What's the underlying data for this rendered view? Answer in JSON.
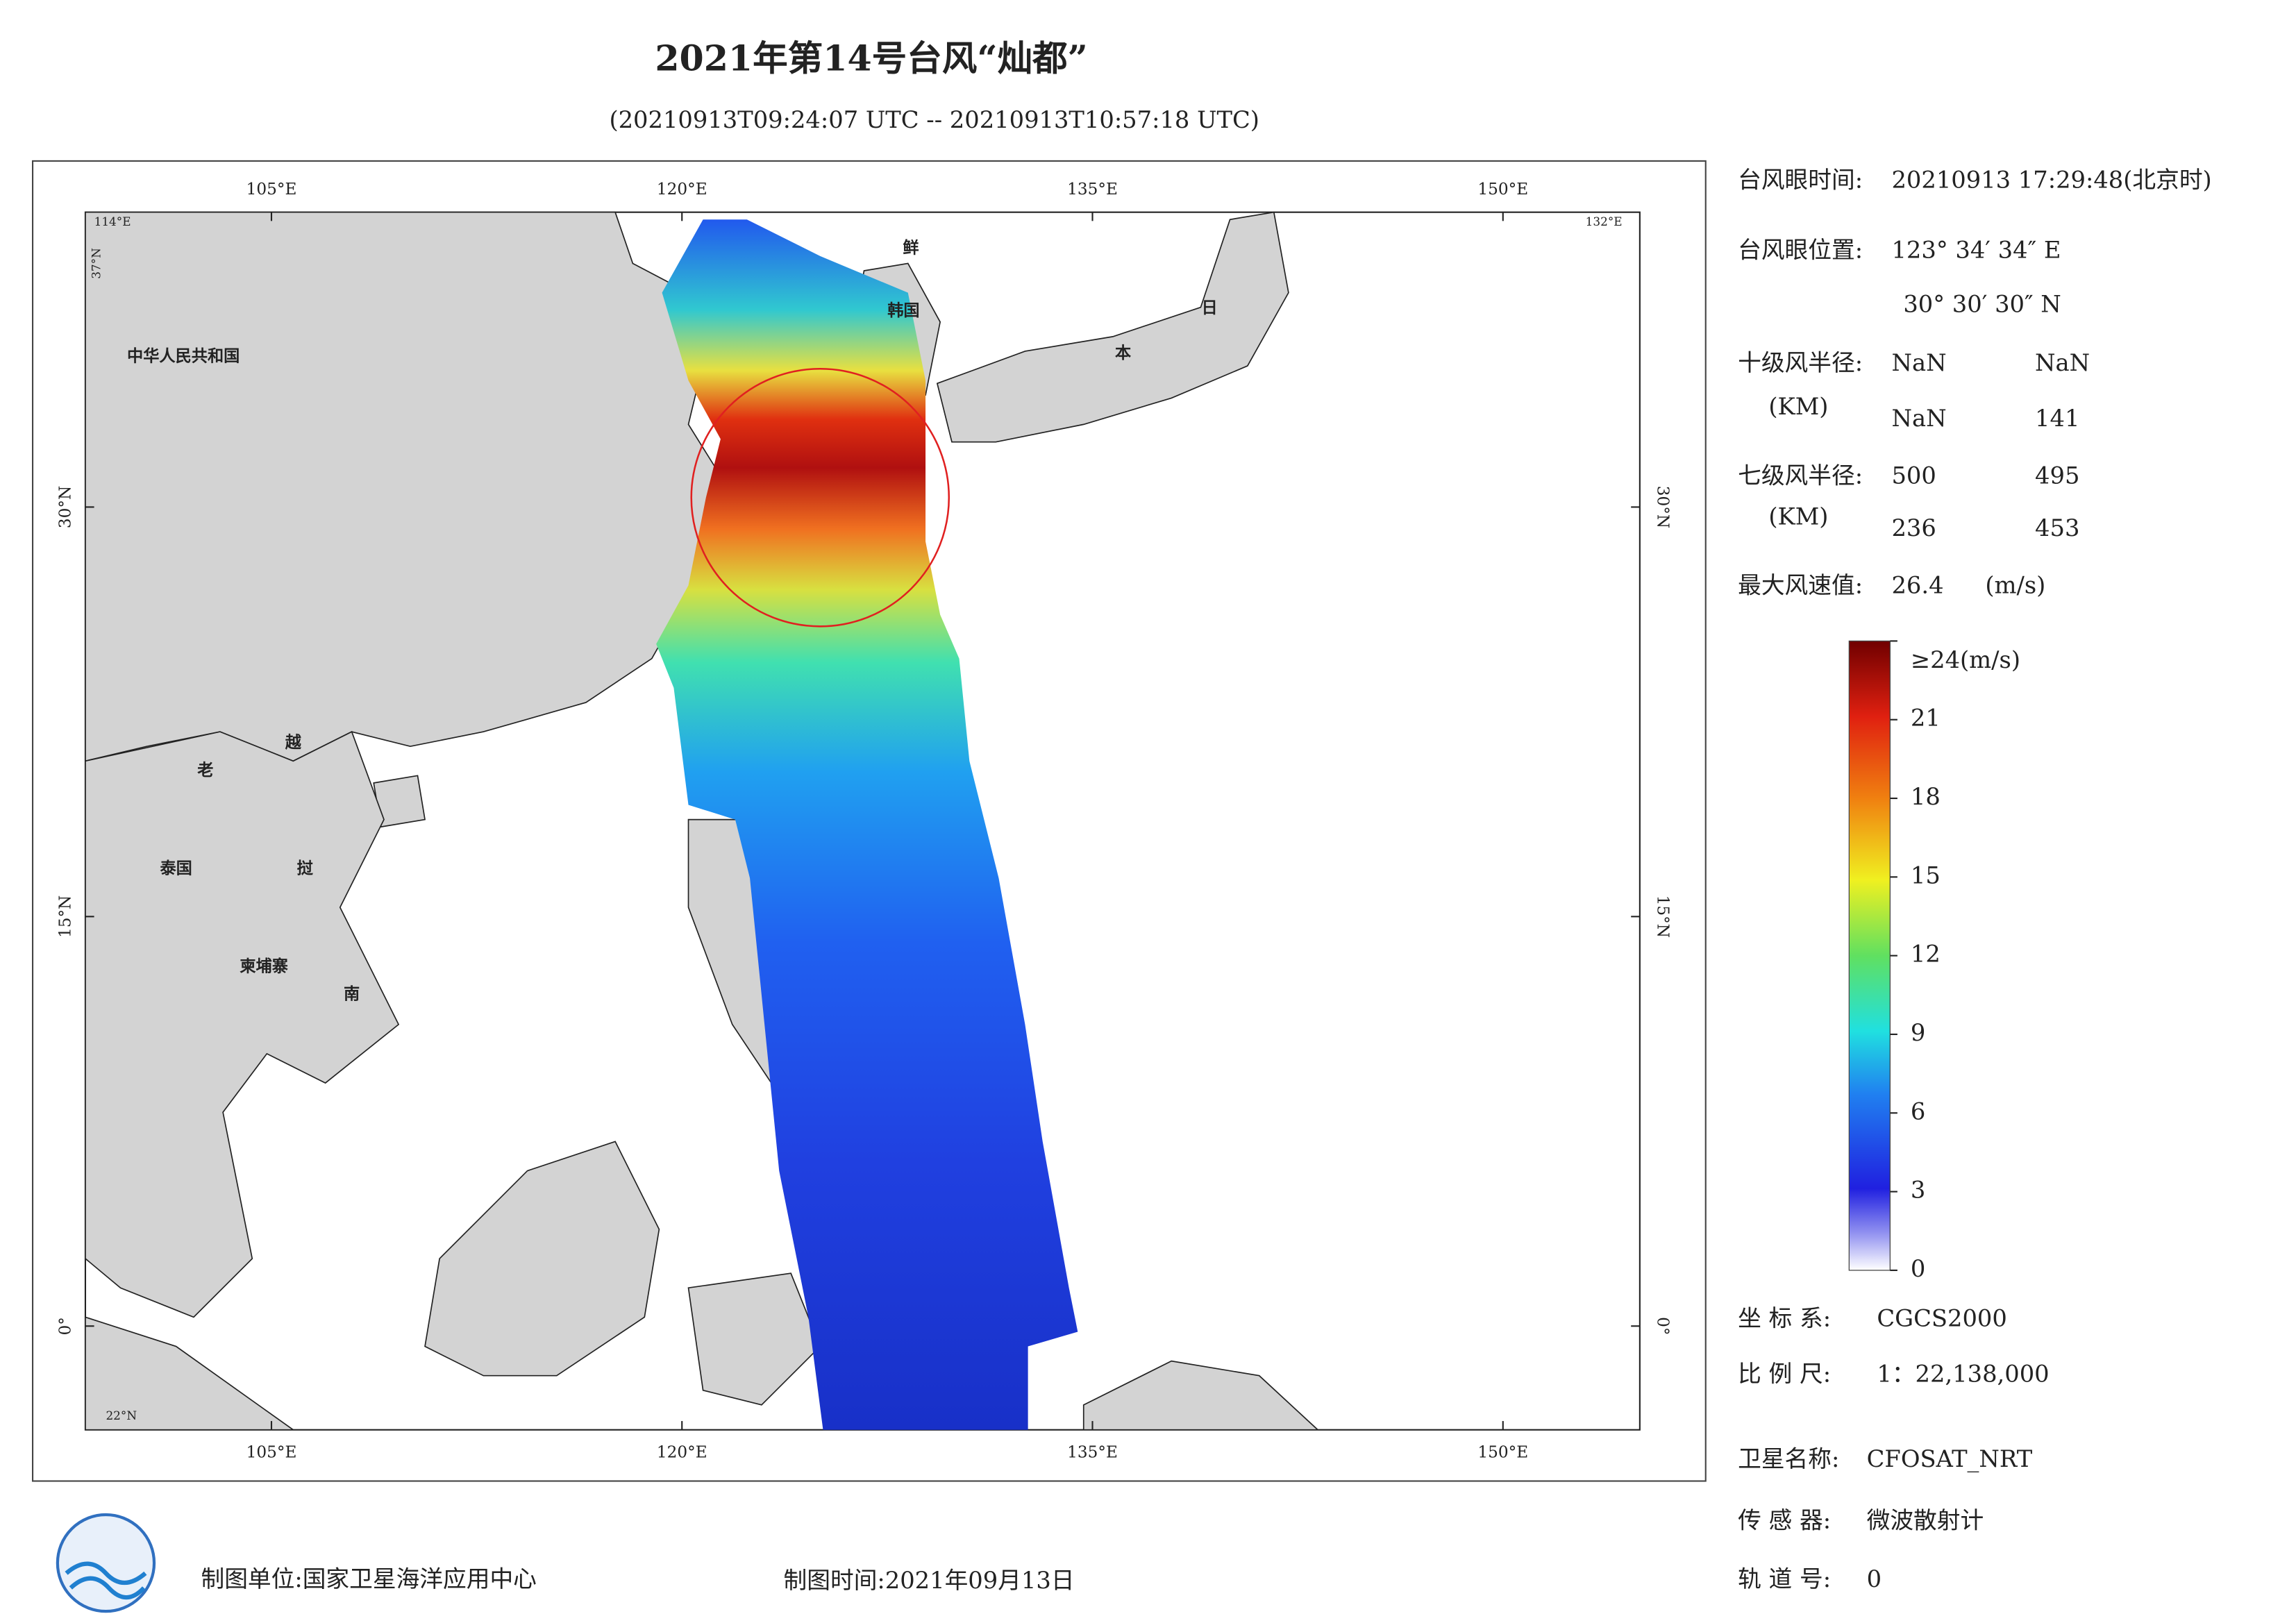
{
  "title": "2021年第14号台风“灿都”",
  "subtitle": "(20210913T09:24:07 UTC -- 20210913T10:57:18 UTC)",
  "map": {
    "xlim": [
      98.2,
      155
    ],
    "ylim": [
      -3.8,
      40.8
    ],
    "lonticks": [
      {
        "value": 105,
        "label": "105°E"
      },
      {
        "value": 120,
        "label": "120°E"
      },
      {
        "value": 135,
        "label": "135°E"
      },
      {
        "value": 150,
        "label": "150°E"
      }
    ],
    "latticks": [
      {
        "value": 30,
        "label": "30°N"
      },
      {
        "value": 15,
        "label": "15°N"
      },
      {
        "value": 0,
        "label": "0°"
      }
    ],
    "corner_labels": [
      "114°E",
      "132°E",
      "37°N",
      "22°N"
    ],
    "labels": [
      "中华人民共和国",
      "鲜",
      "韩国",
      "日",
      "本",
      "老",
      "越",
      "泰国",
      "挝",
      "柬埔寨",
      "南"
    ]
  },
  "colorbar": {
    "range": [
      0,
      24
    ],
    "ticks": [
      0,
      3,
      6,
      9,
      12,
      15,
      18,
      21,
      {
        "value": 24,
        "label": "≥24(m/s)"
      }
    ]
  },
  "info": {
    "eye_time": {
      "label": "台风眼时间:",
      "value": "20210913 17:29:48(北京时)"
    },
    "eye_position": {
      "label": "台风眼位置:",
      "lon": "123° 34′ 34″ E",
      "lat": "30° 30′ 30″ N"
    },
    "radius_10": {
      "label": "十级风半径:",
      "unit": "(KM)",
      "values": [
        "NaN",
        "NaN",
        "NaN",
        141
      ]
    },
    "radius_7": {
      "label": "七级风半径:",
      "unit": "(KM)",
      "values": [
        500,
        495,
        236,
        453
      ]
    },
    "max_wind": {
      "label": "最大风速值:",
      "value": 26.4,
      "unit": "(m/s)"
    },
    "crs": {
      "label": "坐 标 系:",
      "value": "CGCS2000"
    },
    "scale": {
      "label": "比 例 尺:",
      "value": "1：22,138,000"
    },
    "satellite": {
      "label": "卫星名称:",
      "value": "CFOSAT_NRT"
    },
    "sensor": {
      "label": "传 感 器:",
      "value": "微波散射计"
    },
    "orbit": {
      "label": "轨 道 号:",
      "value": 0
    }
  },
  "footer": {
    "producer": "制图单位:国家卫星海洋应用中心",
    "date": "制图时间:2021年09月13日"
  }
}
